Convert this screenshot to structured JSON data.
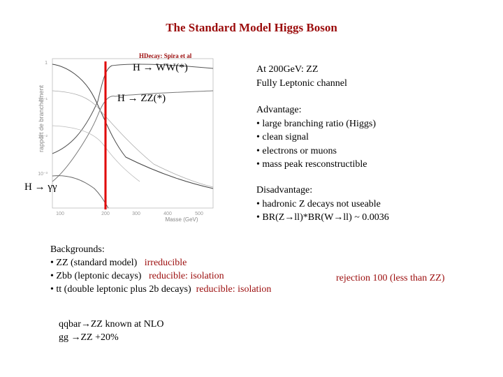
{
  "slide": {
    "title": "The Standard Model Higgs Boson",
    "hdecay_label": "HDecay: Spira et al",
    "plot": {
      "ylabel": "rapport de branchement",
      "xlabel": "Masse (GeV)",
      "x_ticks": [
        "100",
        "200",
        "300",
        "400",
        "500"
      ],
      "y_ticks": [
        "1",
        "10⁻¹",
        "10⁻²",
        "10⁻³"
      ],
      "ww_label": "H → WW(*)",
      "zz_label": "H → ZZ(*)",
      "gg_label": "H → γγ"
    },
    "right": {
      "line1": "At 200GeV: ZZ",
      "line2": "Fully Leptonic channel",
      "adv_title": "Advantage:",
      "adv": [
        "• large branching ratio (Higgs)",
        "• clean signal",
        "• electrons or muons",
        "• mass peak resconstructible"
      ],
      "dis_title": "Disadvantage:",
      "dis": [
        "• hadronic Z decays not useable",
        "• BR(Z→ll)*BR(W→ll) ~ 0.0036"
      ]
    },
    "backgrounds": {
      "title": "Backgrounds:",
      "l1_a": "• ZZ (standard model)",
      "l1_b": "irreducible",
      "l2_a": "• Zbb (leptonic decays)",
      "l2_b": "reducible: isolation",
      "l2_c": "rejection 100 (less than ZZ)",
      "l3_a": "• tt (double leptonic plus 2b decays)",
      "l3_b": "reducible: isolation"
    },
    "qq": {
      "line1": "qqbar→ZZ known at NLO",
      "line2": "gg →ZZ +20%"
    },
    "colors": {
      "title": "#9b0b0b",
      "accent": "#c00000",
      "marker": "#e00000"
    }
  }
}
